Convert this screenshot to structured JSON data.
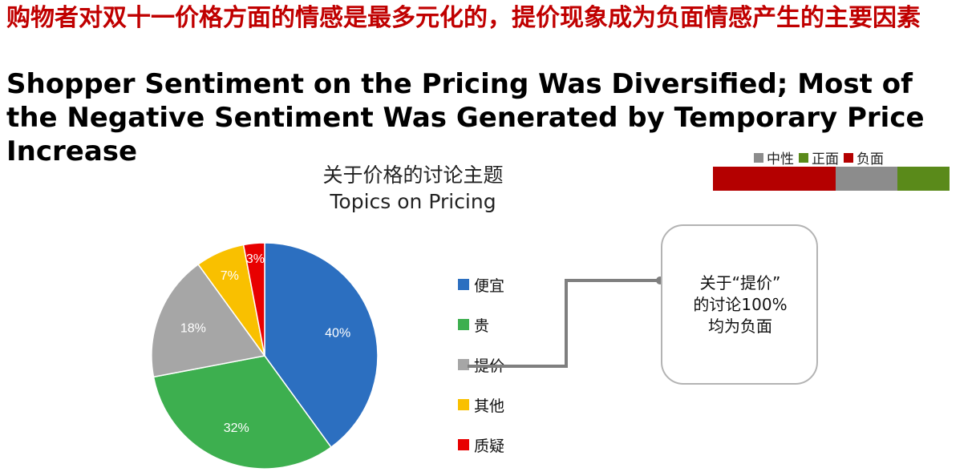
{
  "title_cn": "购物者对双十一价格方面的情感是最多元化的，提价现象成为负面情感产生的主要因素",
  "title_en": "Shopper Sentiment on the Pricing Was Diversified; Most of the Negative Sentiment Was Generated by Temporary Price Increase",
  "sentiment_legend": [
    {
      "label": "中性",
      "color": "#8c8c8c"
    },
    {
      "label": "正面",
      "color": "#5a8a1a"
    },
    {
      "label": "负面",
      "color": "#b40000"
    }
  ],
  "callout_text": "关于“提价”\n的讨论100%\n均为负面",
  "chart_data": [
    {
      "type": "pie",
      "title": "关于价格的讨论主题\nTopics on Pricing",
      "title_cn": "关于价格的讨论主题",
      "title_en": "Topics on Pricing",
      "categories": [
        "便宜",
        "贵",
        "提价",
        "其他",
        "质疑"
      ],
      "values": [
        40,
        32,
        18,
        7,
        3
      ],
      "labels": [
        "40%",
        "32%",
        "18%",
        "7%",
        "3%"
      ],
      "colors": [
        "#2c6fc0",
        "#3daf4f",
        "#a6a6a6",
        "#f9c000",
        "#e80000"
      ],
      "legend": "right"
    },
    {
      "type": "bar",
      "stacked": true,
      "orientation": "horizontal",
      "series": [
        {
          "name": "负面",
          "values": [
            52
          ],
          "color": "#b40000"
        },
        {
          "name": "中性",
          "values": [
            26
          ],
          "color": "#8c8c8c"
        },
        {
          "name": "正面",
          "values": [
            22
          ],
          "color": "#5a8a1a"
        }
      ],
      "legend": "top"
    }
  ]
}
